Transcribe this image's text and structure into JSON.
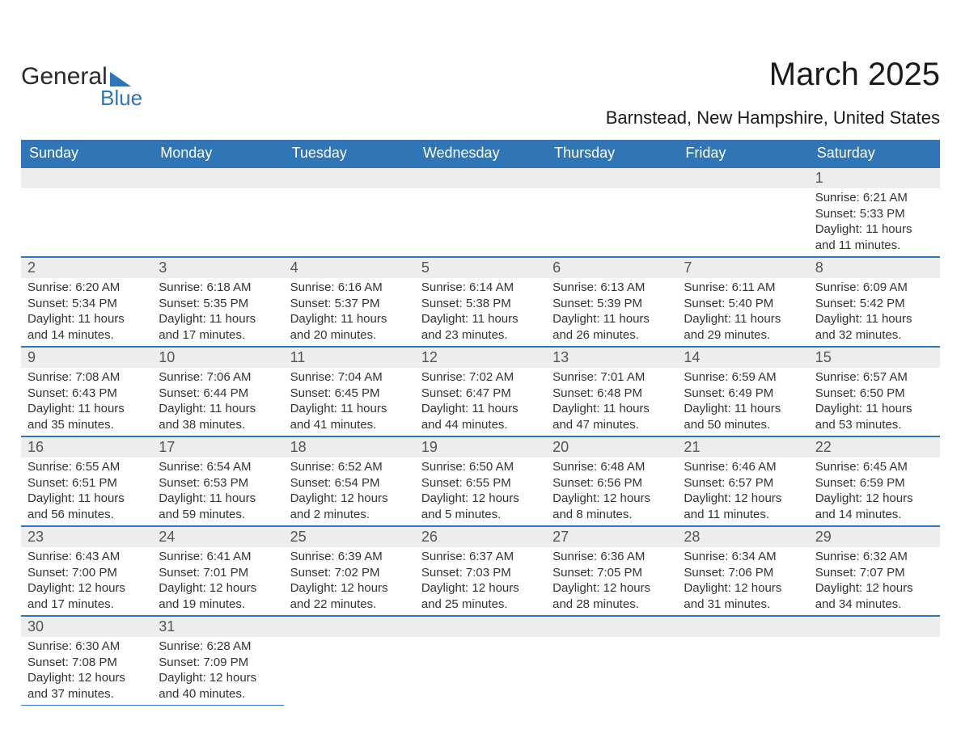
{
  "logo": {
    "text_primary": "General",
    "text_secondary": "Blue"
  },
  "header": {
    "month_title": "March 2025",
    "location": "Barnstead, New Hampshire, United States"
  },
  "colors": {
    "header_bg": "#3075B5",
    "header_text": "#ffffff",
    "daynum_bg": "#EDEDED",
    "daynum_text": "#555555",
    "body_text": "#333333",
    "border": "#3075B5",
    "page_bg": "#ffffff"
  },
  "weekdays": [
    "Sunday",
    "Monday",
    "Tuesday",
    "Wednesday",
    "Thursday",
    "Friday",
    "Saturday"
  ],
  "weeks": [
    [
      null,
      null,
      null,
      null,
      null,
      null,
      {
        "day": "1",
        "sunrise": "Sunrise: 6:21 AM",
        "sunset": "Sunset: 5:33 PM",
        "daylight1": "Daylight: 11 hours",
        "daylight2": "and 11 minutes."
      }
    ],
    [
      {
        "day": "2",
        "sunrise": "Sunrise: 6:20 AM",
        "sunset": "Sunset: 5:34 PM",
        "daylight1": "Daylight: 11 hours",
        "daylight2": "and 14 minutes."
      },
      {
        "day": "3",
        "sunrise": "Sunrise: 6:18 AM",
        "sunset": "Sunset: 5:35 PM",
        "daylight1": "Daylight: 11 hours",
        "daylight2": "and 17 minutes."
      },
      {
        "day": "4",
        "sunrise": "Sunrise: 6:16 AM",
        "sunset": "Sunset: 5:37 PM",
        "daylight1": "Daylight: 11 hours",
        "daylight2": "and 20 minutes."
      },
      {
        "day": "5",
        "sunrise": "Sunrise: 6:14 AM",
        "sunset": "Sunset: 5:38 PM",
        "daylight1": "Daylight: 11 hours",
        "daylight2": "and 23 minutes."
      },
      {
        "day": "6",
        "sunrise": "Sunrise: 6:13 AM",
        "sunset": "Sunset: 5:39 PM",
        "daylight1": "Daylight: 11 hours",
        "daylight2": "and 26 minutes."
      },
      {
        "day": "7",
        "sunrise": "Sunrise: 6:11 AM",
        "sunset": "Sunset: 5:40 PM",
        "daylight1": "Daylight: 11 hours",
        "daylight2": "and 29 minutes."
      },
      {
        "day": "8",
        "sunrise": "Sunrise: 6:09 AM",
        "sunset": "Sunset: 5:42 PM",
        "daylight1": "Daylight: 11 hours",
        "daylight2": "and 32 minutes."
      }
    ],
    [
      {
        "day": "9",
        "sunrise": "Sunrise: 7:08 AM",
        "sunset": "Sunset: 6:43 PM",
        "daylight1": "Daylight: 11 hours",
        "daylight2": "and 35 minutes."
      },
      {
        "day": "10",
        "sunrise": "Sunrise: 7:06 AM",
        "sunset": "Sunset: 6:44 PM",
        "daylight1": "Daylight: 11 hours",
        "daylight2": "and 38 minutes."
      },
      {
        "day": "11",
        "sunrise": "Sunrise: 7:04 AM",
        "sunset": "Sunset: 6:45 PM",
        "daylight1": "Daylight: 11 hours",
        "daylight2": "and 41 minutes."
      },
      {
        "day": "12",
        "sunrise": "Sunrise: 7:02 AM",
        "sunset": "Sunset: 6:47 PM",
        "daylight1": "Daylight: 11 hours",
        "daylight2": "and 44 minutes."
      },
      {
        "day": "13",
        "sunrise": "Sunrise: 7:01 AM",
        "sunset": "Sunset: 6:48 PM",
        "daylight1": "Daylight: 11 hours",
        "daylight2": "and 47 minutes."
      },
      {
        "day": "14",
        "sunrise": "Sunrise: 6:59 AM",
        "sunset": "Sunset: 6:49 PM",
        "daylight1": "Daylight: 11 hours",
        "daylight2": "and 50 minutes."
      },
      {
        "day": "15",
        "sunrise": "Sunrise: 6:57 AM",
        "sunset": "Sunset: 6:50 PM",
        "daylight1": "Daylight: 11 hours",
        "daylight2": "and 53 minutes."
      }
    ],
    [
      {
        "day": "16",
        "sunrise": "Sunrise: 6:55 AM",
        "sunset": "Sunset: 6:51 PM",
        "daylight1": "Daylight: 11 hours",
        "daylight2": "and 56 minutes."
      },
      {
        "day": "17",
        "sunrise": "Sunrise: 6:54 AM",
        "sunset": "Sunset: 6:53 PM",
        "daylight1": "Daylight: 11 hours",
        "daylight2": "and 59 minutes."
      },
      {
        "day": "18",
        "sunrise": "Sunrise: 6:52 AM",
        "sunset": "Sunset: 6:54 PM",
        "daylight1": "Daylight: 12 hours",
        "daylight2": "and 2 minutes."
      },
      {
        "day": "19",
        "sunrise": "Sunrise: 6:50 AM",
        "sunset": "Sunset: 6:55 PM",
        "daylight1": "Daylight: 12 hours",
        "daylight2": "and 5 minutes."
      },
      {
        "day": "20",
        "sunrise": "Sunrise: 6:48 AM",
        "sunset": "Sunset: 6:56 PM",
        "daylight1": "Daylight: 12 hours",
        "daylight2": "and 8 minutes."
      },
      {
        "day": "21",
        "sunrise": "Sunrise: 6:46 AM",
        "sunset": "Sunset: 6:57 PM",
        "daylight1": "Daylight: 12 hours",
        "daylight2": "and 11 minutes."
      },
      {
        "day": "22",
        "sunrise": "Sunrise: 6:45 AM",
        "sunset": "Sunset: 6:59 PM",
        "daylight1": "Daylight: 12 hours",
        "daylight2": "and 14 minutes."
      }
    ],
    [
      {
        "day": "23",
        "sunrise": "Sunrise: 6:43 AM",
        "sunset": "Sunset: 7:00 PM",
        "daylight1": "Daylight: 12 hours",
        "daylight2": "and 17 minutes."
      },
      {
        "day": "24",
        "sunrise": "Sunrise: 6:41 AM",
        "sunset": "Sunset: 7:01 PM",
        "daylight1": "Daylight: 12 hours",
        "daylight2": "and 19 minutes."
      },
      {
        "day": "25",
        "sunrise": "Sunrise: 6:39 AM",
        "sunset": "Sunset: 7:02 PM",
        "daylight1": "Daylight: 12 hours",
        "daylight2": "and 22 minutes."
      },
      {
        "day": "26",
        "sunrise": "Sunrise: 6:37 AM",
        "sunset": "Sunset: 7:03 PM",
        "daylight1": "Daylight: 12 hours",
        "daylight2": "and 25 minutes."
      },
      {
        "day": "27",
        "sunrise": "Sunrise: 6:36 AM",
        "sunset": "Sunset: 7:05 PM",
        "daylight1": "Daylight: 12 hours",
        "daylight2": "and 28 minutes."
      },
      {
        "day": "28",
        "sunrise": "Sunrise: 6:34 AM",
        "sunset": "Sunset: 7:06 PM",
        "daylight1": "Daylight: 12 hours",
        "daylight2": "and 31 minutes."
      },
      {
        "day": "29",
        "sunrise": "Sunrise: 6:32 AM",
        "sunset": "Sunset: 7:07 PM",
        "daylight1": "Daylight: 12 hours",
        "daylight2": "and 34 minutes."
      }
    ],
    [
      {
        "day": "30",
        "sunrise": "Sunrise: 6:30 AM",
        "sunset": "Sunset: 7:08 PM",
        "daylight1": "Daylight: 12 hours",
        "daylight2": "and 37 minutes."
      },
      {
        "day": "31",
        "sunrise": "Sunrise: 6:28 AM",
        "sunset": "Sunset: 7:09 PM",
        "daylight1": "Daylight: 12 hours",
        "daylight2": "and 40 minutes."
      },
      null,
      null,
      null,
      null,
      null
    ]
  ]
}
